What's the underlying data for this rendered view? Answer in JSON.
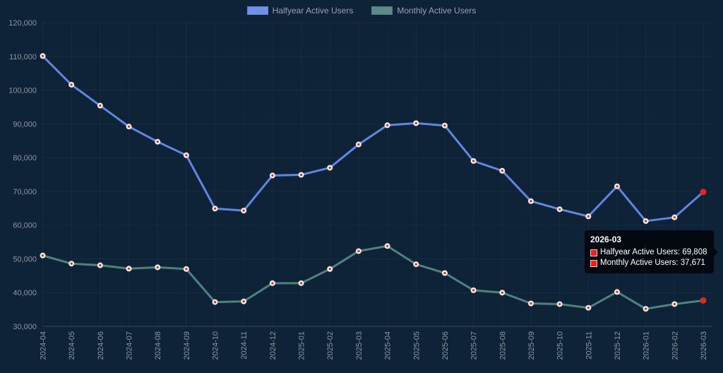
{
  "chart_data": {
    "type": "line",
    "x": [
      "2024-04",
      "2024-05",
      "2024-06",
      "2024-07",
      "2024-08",
      "2024-09",
      "2024-10",
      "2024-11",
      "2024-12",
      "2025-01",
      "2025-02",
      "2025-03",
      "2025-04",
      "2025-05",
      "2025-06",
      "2025-07",
      "2025-08",
      "2025-09",
      "2025-10",
      "2025-11",
      "2025-12",
      "2026-01",
      "2026-02",
      "2026-03"
    ],
    "series": [
      {
        "name": "Halfyear Active Users",
        "line_color": "#6286de",
        "legend_fill": "#7191e8",
        "values": [
          110100,
          101600,
          95400,
          89200,
          84700,
          80700,
          64900,
          64300,
          74700,
          74900,
          77000,
          83900,
          89600,
          90200,
          89500,
          79000,
          76100,
          67100,
          64700,
          62600,
          71500,
          61200,
          62300,
          69808
        ]
      },
      {
        "name": "Monthly Active Users",
        "line_color": "#4f827e",
        "legend_fill": "#5c8a86",
        "values": [
          51000,
          48600,
          48100,
          47100,
          47500,
          47000,
          37200,
          37400,
          42800,
          42800,
          47000,
          52300,
          53800,
          48400,
          45800,
          40700,
          40000,
          36800,
          36600,
          35500,
          40200,
          35200,
          36600,
          37671
        ]
      }
    ],
    "title": "",
    "xlabel": "",
    "ylabel": "",
    "ylim": [
      30000,
      120000
    ],
    "ytick_step": 10000,
    "grid": true,
    "legend_position": "top",
    "x_tick_rotation": -90
  },
  "tooltip": {
    "title": "2026-03",
    "rows": [
      {
        "text": "Halfyear Active Users: 69,808",
        "marker_color": "#e8241c"
      },
      {
        "text": "Monthly Active Users: 37,671",
        "marker_color": "#e8241c"
      }
    ]
  },
  "colors": {
    "background": "#0e2337",
    "tick_text": "#8d96a3",
    "legend_text": "#97a1b0",
    "point_fill": "#f4ebe5",
    "point_center": "#c3342c",
    "active_point": "#e8241c",
    "tooltip_bg": "rgba(2,4,8,0.82)"
  }
}
